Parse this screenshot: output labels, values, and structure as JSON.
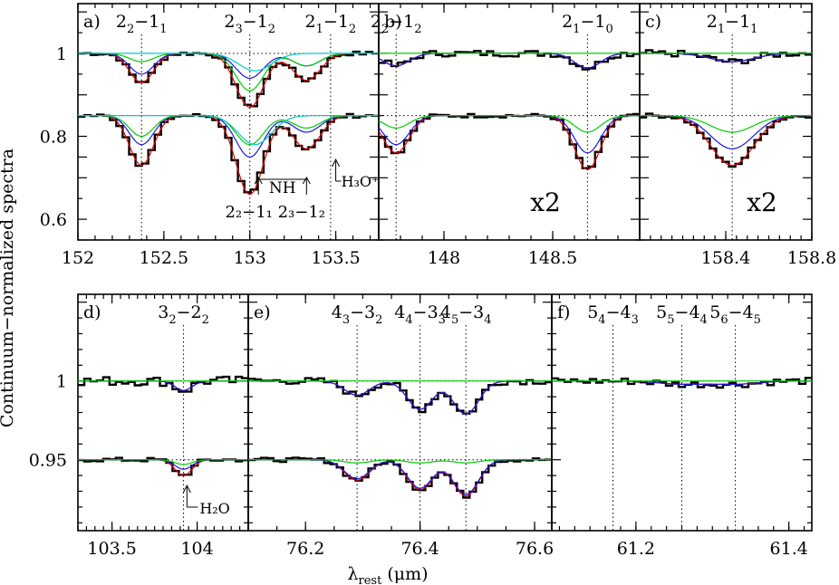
{
  "figure": {
    "ylabel": "Continuum−normalized spectra",
    "xlabel_main": "λ",
    "xlabel_sub": "rest",
    "xlabel_units": "(μm)"
  },
  "colors": {
    "total_fit": "#e00000",
    "component_blue": "#1a1adc",
    "component_green": "#00cc00",
    "component_cyan": "#00cccc",
    "spectrum": "#000000"
  },
  "chart_data": [
    {
      "panel": "a)",
      "type": "line",
      "xlim": [
        152.0,
        153.75
      ],
      "xticks": [
        152,
        152.5,
        153,
        153.5
      ],
      "xtick_labels": [
        "152",
        "152.5",
        "153",
        "153.5"
      ],
      "ylim": [
        0.55,
        1.12
      ],
      "yticks": [
        0.6,
        0.8,
        1.0
      ],
      "ytick_labels": [
        "0.6",
        "0.8",
        "1"
      ],
      "offsets": [
        1.0,
        0.85
      ],
      "lines": [
        {
          "x": 152.37,
          "top": "2",
          "top_sub": "2",
          "rest": "−1",
          "rest_sub": "1"
        },
        {
          "x": 153.0,
          "top": "2",
          "top_sub": "3",
          "rest": "−1",
          "rest_sub": "2"
        },
        {
          "x": 153.47,
          "top": "2",
          "top_sub": "1",
          "rest": "−1",
          "rest_sub": "2"
        }
      ],
      "annotations": [
        {
          "label": "NH",
          "text": "2₂−1₁ 2₃−1₂"
        },
        {
          "label": "H₃O⁺"
        }
      ]
    },
    {
      "panel": "b)",
      "type": "line",
      "xlim": [
        147.7,
        148.9
      ],
      "xticks": [
        148,
        148.5
      ],
      "xtick_labels": [
        "148",
        "148.5"
      ],
      "ylim": [
        0.55,
        1.12
      ],
      "offsets": [
        1.0,
        0.85
      ],
      "scale_label": "x2",
      "lines": [
        {
          "x": 147.78,
          "top": "2",
          "top_sub": "2",
          "rest": "−1",
          "rest_sub": "2"
        },
        {
          "x": 148.66,
          "top": "2",
          "top_sub": "1",
          "rest": "−1",
          "rest_sub": "0"
        }
      ]
    },
    {
      "panel": "c)",
      "type": "line",
      "xlim": [
        158.0,
        158.8
      ],
      "xticks": [
        158.4,
        158.8
      ],
      "xtick_labels": [
        "158.4",
        "158.8"
      ],
      "ylim": [
        0.55,
        1.12
      ],
      "offsets": [
        1.0,
        0.85
      ],
      "scale_label": "x2",
      "lines": [
        {
          "x": 158.43,
          "top": "2",
          "top_sub": "1",
          "rest": "−1",
          "rest_sub": "1"
        }
      ]
    },
    {
      "panel": "d)",
      "type": "line",
      "xlim": [
        103.3,
        104.3
      ],
      "xticks": [
        103.5,
        104
      ],
      "xtick_labels": [
        "103.5",
        "104"
      ],
      "ylim": [
        0.905,
        1.055
      ],
      "yticks": [
        0.95,
        1.0
      ],
      "ytick_labels": [
        "0.95",
        "1"
      ],
      "offsets": [
        1.0,
        0.95
      ],
      "lines": [
        {
          "x": 103.92,
          "top": "3",
          "top_sub": "2",
          "rest": "−2",
          "rest_sub": "2"
        }
      ],
      "annotations": [
        {
          "label": "H₂O"
        }
      ]
    },
    {
      "panel": "e)",
      "type": "line",
      "xlim": [
        76.1,
        76.63
      ],
      "xticks": [
        76.2,
        76.4,
        76.6
      ],
      "xtick_labels": [
        "76.2",
        "76.4",
        "76.6"
      ],
      "ylim": [
        0.905,
        1.055
      ],
      "offsets": [
        1.0,
        0.95
      ],
      "lines": [
        {
          "x": 76.29,
          "top": "4",
          "top_sub": "3",
          "rest": "−3",
          "rest_sub": "2"
        },
        {
          "x": 76.4,
          "top": "4",
          "top_sub": "4",
          "rest": "−3",
          "rest_sub": "3"
        },
        {
          "x": 76.48,
          "top": "4",
          "top_sub": "5",
          "rest": "−3",
          "rest_sub": "4"
        }
      ]
    },
    {
      "panel": "f)",
      "type": "line",
      "xlim": [
        61.09,
        61.43
      ],
      "xticks": [
        61.2,
        61.4
      ],
      "xtick_labels": [
        "61.2",
        "61.4"
      ],
      "ylim": [
        0.905,
        1.055
      ],
      "offsets": [
        1.0
      ],
      "lines": [
        {
          "x": 61.17,
          "top": "5",
          "top_sub": "4",
          "rest": "−4",
          "rest_sub": "3"
        },
        {
          "x": 61.26,
          "top": "5",
          "top_sub": "5",
          "rest": "−4",
          "rest_sub": "4"
        },
        {
          "x": 61.33,
          "top": "5",
          "top_sub": "6",
          "rest": "−4",
          "rest_sub": "5"
        }
      ]
    }
  ]
}
